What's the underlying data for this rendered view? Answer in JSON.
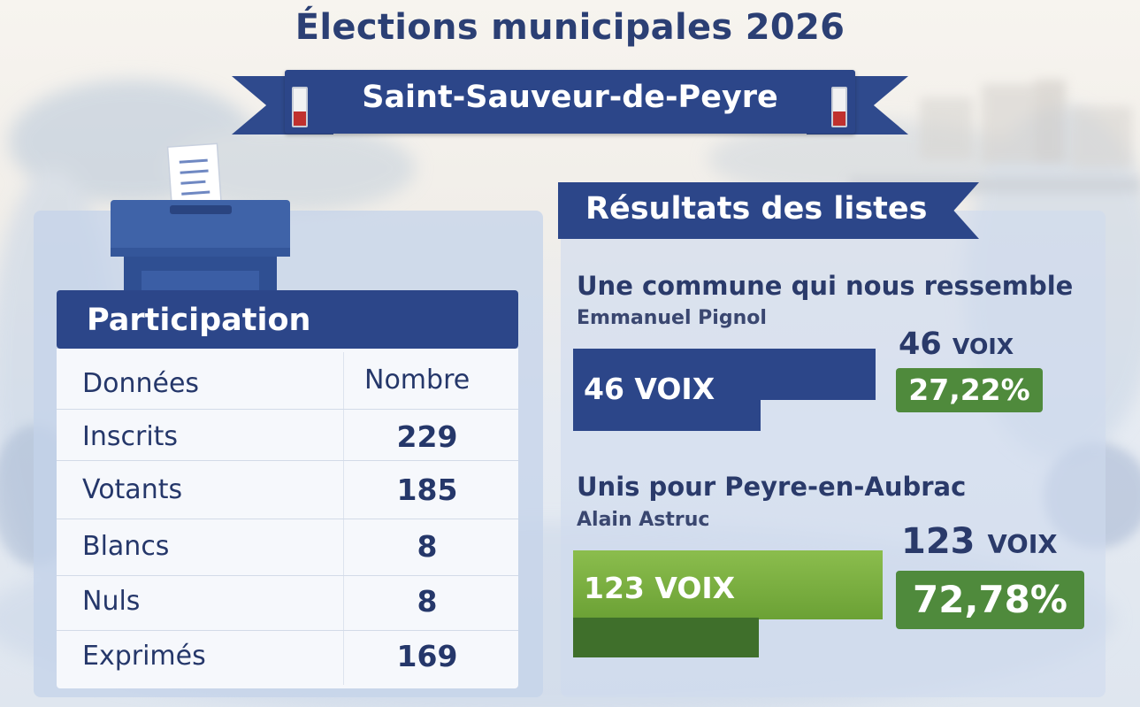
{
  "title": "Élections municipales 2026",
  "commune": "Saint-Sauveur-de-Peyre",
  "participation": {
    "title": "Participation",
    "col_label": "Données",
    "col_value": "Nombre",
    "rows": [
      {
        "label": "Inscrits",
        "value": "229"
      },
      {
        "label": "Votants",
        "value": "185"
      },
      {
        "label": "Blancs",
        "value": "8"
      },
      {
        "label": "Nuls",
        "value": "8"
      },
      {
        "label": "Exprimés",
        "value": "169"
      }
    ]
  },
  "results": {
    "title": "Résultats des listes",
    "lists": [
      {
        "name": "Une commune qui nous ressemble",
        "head": "Emmanuel Pignol",
        "bar_label": "46 VOIX",
        "count": "46",
        "count_unit": "VOIX",
        "percent": "27,22%",
        "share": 0.2722,
        "color": "#2c4689"
      },
      {
        "name": "Unis pour Peyre-en-Aubrac",
        "head": "Alain Astruc",
        "bar_label": "123 VOIX",
        "count": "123",
        "count_unit": "VOIX",
        "percent": "72,78%",
        "share": 0.7278,
        "color": "#6ba135"
      }
    ]
  },
  "colors": {
    "navy": "#2c4689",
    "green": "#6ba135",
    "dark_green": "#4f8a3c"
  }
}
